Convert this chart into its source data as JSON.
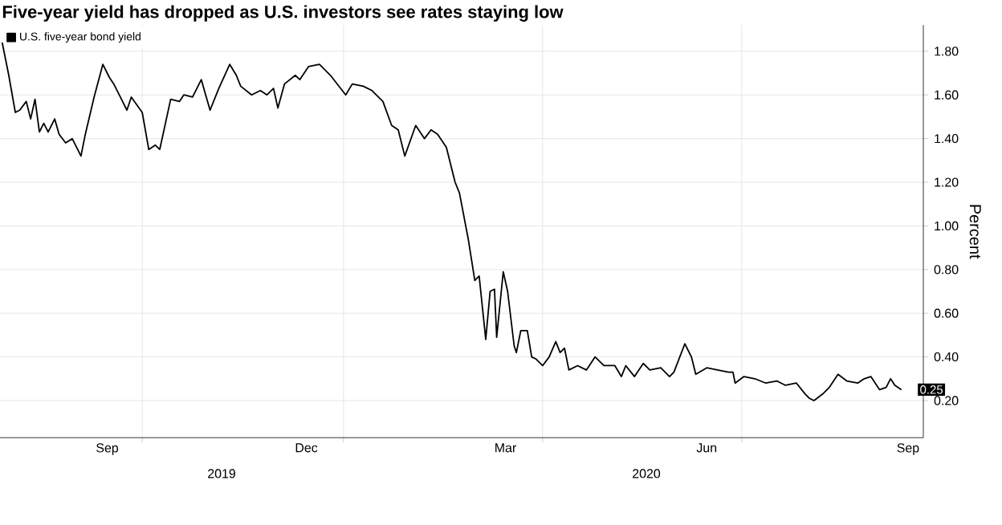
{
  "chart_data": {
    "type": "line",
    "title": "Five-year yield has dropped as U.S. investors see rates staying low",
    "ylabel": "Percent",
    "xlim": [
      "2019-07-28",
      "2020-09-22"
    ],
    "ylim": [
      0.03,
      1.92
    ],
    "xticks": [
      {
        "value": "2019-09-15",
        "label": "Sep"
      },
      {
        "value": "2019-10-01",
        "label": null
      },
      {
        "value": "2019-12-15",
        "label": "Dec"
      },
      {
        "value": "2020-01-01",
        "label": null
      },
      {
        "value": "2020-03-15",
        "label": "Mar"
      },
      {
        "value": "2020-04-01",
        "label": null
      },
      {
        "value": "2020-06-15",
        "label": "Jun"
      },
      {
        "value": "2020-07-01",
        "label": null
      },
      {
        "value": "2020-09-15",
        "label": "Sep"
      }
    ],
    "yticks": [
      {
        "value": 0.2,
        "label": "0.20"
      },
      {
        "value": 0.4,
        "label": "0.40"
      },
      {
        "value": 0.6,
        "label": "0.60"
      },
      {
        "value": 0.8,
        "label": "0.80"
      },
      {
        "value": 1.0,
        "label": "1.00"
      },
      {
        "value": 1.2,
        "label": "1.20"
      },
      {
        "value": 1.4,
        "label": "1.40"
      },
      {
        "value": 1.6,
        "label": "1.60"
      },
      {
        "value": 1.8,
        "label": "1.80"
      }
    ],
    "grid": true,
    "legend": "top left",
    "annotations": [
      "2019",
      "2020",
      {
        "text": "0.25",
        "x": "2020-09-12",
        "y": 0.25
      }
    ],
    "series": [
      {
        "name": "U.S. five-year bond yield",
        "color": "#000000",
        "x": [
          "2019-07-29",
          "2019-08-01",
          "2019-08-04",
          "2019-08-06",
          "2019-08-09",
          "2019-08-11",
          "2019-08-13",
          "2019-08-15",
          "2019-08-17",
          "2019-08-19",
          "2019-08-22",
          "2019-08-24",
          "2019-08-27",
          "2019-08-30",
          "2019-09-03",
          "2019-09-05",
          "2019-09-09",
          "2019-09-13",
          "2019-09-16",
          "2019-09-18",
          "2019-09-21",
          "2019-09-24",
          "2019-09-26",
          "2019-10-01",
          "2019-10-04",
          "2019-10-07",
          "2019-10-09",
          "2019-10-14",
          "2019-10-18",
          "2019-10-20",
          "2019-10-24",
          "2019-10-28",
          "2019-11-01",
          "2019-11-05",
          "2019-11-10",
          "2019-11-13",
          "2019-11-15",
          "2019-11-20",
          "2019-11-24",
          "2019-11-27",
          "2019-11-30",
          "2019-12-02",
          "2019-12-05",
          "2019-12-10",
          "2019-12-12",
          "2019-12-16",
          "2019-12-21",
          "2019-12-26",
          "2020-01-02",
          "2020-01-05",
          "2020-01-10",
          "2020-01-14",
          "2020-01-19",
          "2020-01-23",
          "2020-01-26",
          "2020-01-29",
          "2020-02-03",
          "2020-02-07",
          "2020-02-10",
          "2020-02-13",
          "2020-02-17",
          "2020-02-21",
          "2020-02-23",
          "2020-02-27",
          "2020-03-01",
          "2020-03-03",
          "2020-03-06",
          "2020-03-08",
          "2020-03-10",
          "2020-03-11",
          "2020-03-14",
          "2020-03-16",
          "2020-03-19",
          "2020-03-20",
          "2020-03-22",
          "2020-03-25",
          "2020-03-27",
          "2020-03-29",
          "2020-04-01",
          "2020-04-04",
          "2020-04-07",
          "2020-04-09",
          "2020-04-11",
          "2020-04-13",
          "2020-04-17",
          "2020-04-21",
          "2020-04-25",
          "2020-04-29",
          "2020-05-04",
          "2020-05-07",
          "2020-05-09",
          "2020-05-13",
          "2020-05-17",
          "2020-05-20",
          "2020-05-25",
          "2020-05-29",
          "2020-05-31",
          "2020-06-05",
          "2020-06-08",
          "2020-06-10",
          "2020-06-15",
          "2020-06-20",
          "2020-06-25",
          "2020-06-27",
          "2020-06-28",
          "2020-07-02",
          "2020-07-07",
          "2020-07-12",
          "2020-07-17",
          "2020-07-21",
          "2020-07-26",
          "2020-07-30",
          "2020-08-01",
          "2020-08-03",
          "2020-08-07",
          "2020-08-10",
          "2020-08-14",
          "2020-08-18",
          "2020-08-23",
          "2020-08-26",
          "2020-08-29",
          "2020-09-02",
          "2020-09-05",
          "2020-09-07",
          "2020-09-09",
          "2020-09-12"
        ],
        "values": [
          1.84,
          1.69,
          1.52,
          1.53,
          1.57,
          1.49,
          1.58,
          1.43,
          1.47,
          1.43,
          1.49,
          1.42,
          1.38,
          1.4,
          1.32,
          1.42,
          1.59,
          1.74,
          1.68,
          1.65,
          1.59,
          1.53,
          1.59,
          1.52,
          1.35,
          1.37,
          1.35,
          1.58,
          1.57,
          1.6,
          1.59,
          1.67,
          1.53,
          1.63,
          1.74,
          1.69,
          1.64,
          1.6,
          1.62,
          1.6,
          1.63,
          1.54,
          1.65,
          1.69,
          1.67,
          1.73,
          1.74,
          1.69,
          1.6,
          1.65,
          1.64,
          1.62,
          1.57,
          1.46,
          1.44,
          1.32,
          1.46,
          1.4,
          1.44,
          1.42,
          1.36,
          1.2,
          1.15,
          0.94,
          0.75,
          0.77,
          0.48,
          0.7,
          0.71,
          0.49,
          0.79,
          0.7,
          0.45,
          0.42,
          0.52,
          0.52,
          0.4,
          0.39,
          0.36,
          0.4,
          0.47,
          0.42,
          0.44,
          0.34,
          0.36,
          0.34,
          0.4,
          0.36,
          0.36,
          0.31,
          0.36,
          0.31,
          0.37,
          0.34,
          0.35,
          0.31,
          0.33,
          0.46,
          0.4,
          0.32,
          0.35,
          0.34,
          0.33,
          0.33,
          0.28,
          0.31,
          0.3,
          0.28,
          0.29,
          0.27,
          0.28,
          0.23,
          0.21,
          0.2,
          0.23,
          0.26,
          0.32,
          0.29,
          0.28,
          0.3,
          0.31,
          0.25,
          0.26,
          0.3,
          0.27,
          0.25
        ]
      }
    ]
  }
}
